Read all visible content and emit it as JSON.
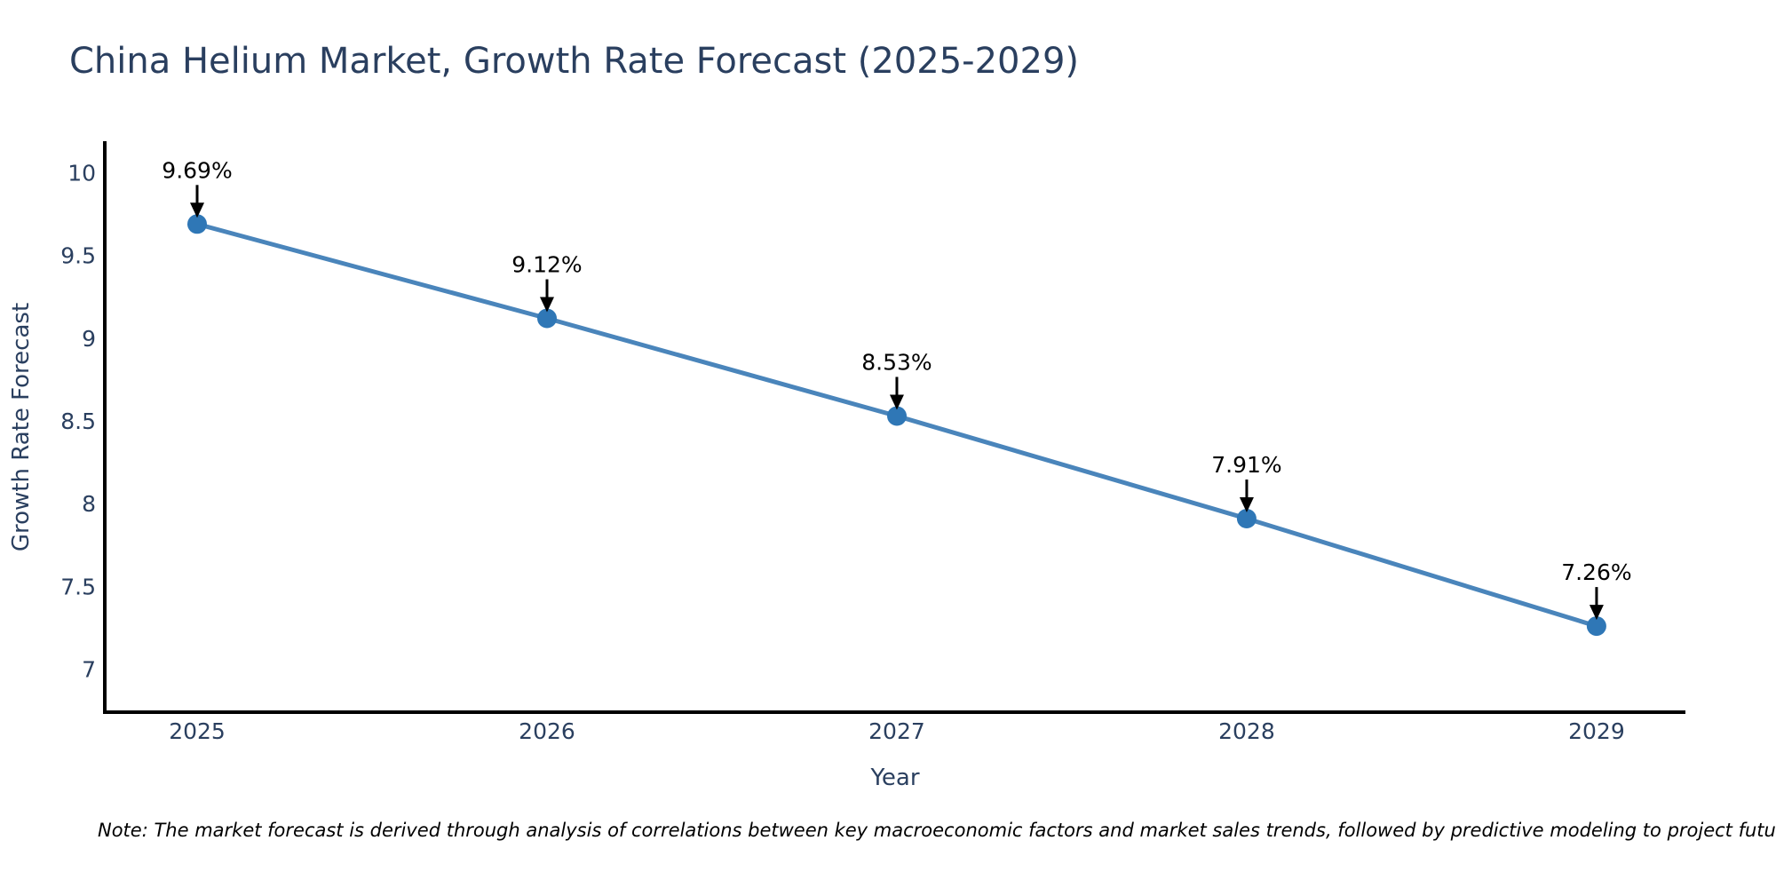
{
  "footnote": "Note: The market forecast is derived through analysis of correlations between key macroeconomic factors and market sales trends, followed by predictive modeling to project future sales",
  "chart_data": {
    "type": "line",
    "title": "China Helium Market, Growth Rate Forecast (2025-2029)",
    "xlabel": "Year",
    "ylabel": "Growth Rate Forecast",
    "x": [
      2025,
      2026,
      2027,
      2028,
      2029
    ],
    "values": [
      9.69,
      9.12,
      8.53,
      7.91,
      7.26
    ],
    "point_labels": [
      "9.69%",
      "9.12%",
      "8.53%",
      "7.91%",
      "7.26%"
    ],
    "xticks": [
      "2025",
      "2026",
      "2027",
      "2028",
      "2029"
    ],
    "yticks": [
      10,
      9.5,
      9,
      8.5,
      8,
      7.5,
      7
    ],
    "xlim": [
      2024.736,
      2029.254
    ],
    "ylim": [
      6.74,
      10.18
    ],
    "grid": false,
    "legend": "none",
    "colors": {
      "line": "#4a85bb",
      "marker": "#2f77b6",
      "axis": "#000000",
      "text": "#2a3f5f",
      "annotation": "#000000"
    }
  }
}
